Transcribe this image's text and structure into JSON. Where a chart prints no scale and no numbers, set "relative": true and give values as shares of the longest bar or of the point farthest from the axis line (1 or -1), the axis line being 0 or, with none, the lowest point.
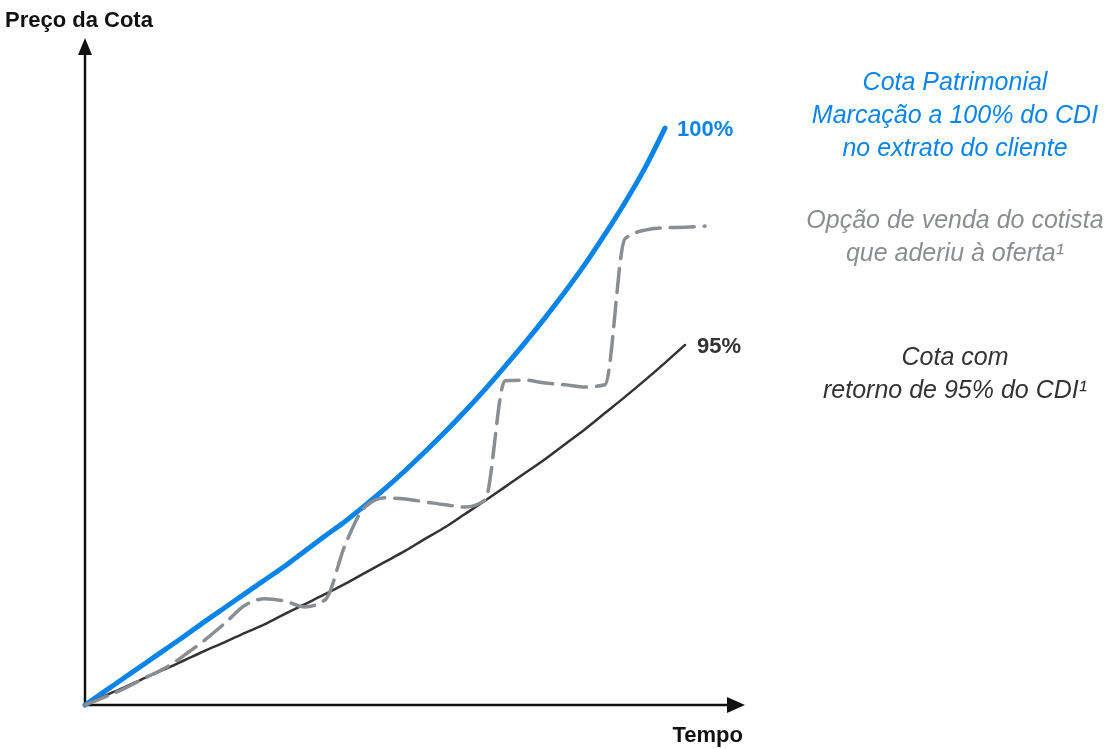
{
  "chart_data": {
    "type": "line",
    "relative": true,
    "ylabel": "Preço da Cota",
    "xlabel": "Tempo",
    "categories": [
      null,
      null,
      null,
      null,
      null,
      null,
      null,
      null,
      null,
      null,
      null,
      null,
      null,
      null,
      null,
      null,
      null,
      null,
      null,
      null,
      null,
      null,
      null,
      null,
      null,
      null,
      null,
      null,
      null,
      null,
      null,
      null
    ],
    "series": [
      {
        "name": "100%",
        "color": "#0a84e8",
        "line_style": "solid",
        "values": [
          0,
          0.024,
          0.048,
          0.072,
          0.096,
          0.12,
          0.145,
          0.169,
          0.193,
          0.217,
          0.241,
          0.267,
          0.293,
          0.318,
          0.346,
          0.375,
          0.406,
          0.439,
          0.473,
          0.509,
          0.547,
          0.587,
          0.628,
          0.671,
          0.716,
          0.764,
          0.816,
          0.871,
          0.931,
          1,
          null,
          null
        ]
      },
      {
        "name": "95%",
        "color": "#333333",
        "line_style": "solid",
        "values": [
          0,
          0.016,
          0.031,
          0.047,
          0.062,
          0.078,
          0.094,
          0.109,
          0.125,
          0.14,
          0.158,
          0.175,
          0.192,
          0.21,
          0.229,
          0.248,
          0.267,
          0.288,
          0.308,
          0.331,
          0.354,
          0.378,
          0.402,
          0.426,
          0.452,
          0.478,
          0.506,
          0.534,
          0.563,
          0.593,
          0.624,
          null
        ]
      },
      {
        "color": "#8a8d91",
        "line_style": "dashed",
        "values": [
          0,
          0.014,
          0.029,
          0.047,
          0.064,
          0.087,
          0.113,
          0.142,
          0.173,
          0.184,
          0.18,
          0.17,
          0.182,
          0.277,
          0.343,
          0.359,
          0.357,
          0.352,
          0.347,
          0.343,
          0.355,
          0.562,
          0.563,
          0.558,
          0.555,
          0.551,
          0.555,
          0.808,
          0.823,
          0.827,
          0.828,
          0.83
        ]
      }
    ],
    "annotations": [
      "Cota Patrimonial\nMarcação a 100% do CDI\nno extrato do cliente",
      "Opção de venda do cotista\nque aderiu à oferta¹",
      "Cota com\nretorno de 95% do CDI¹"
    ]
  }
}
